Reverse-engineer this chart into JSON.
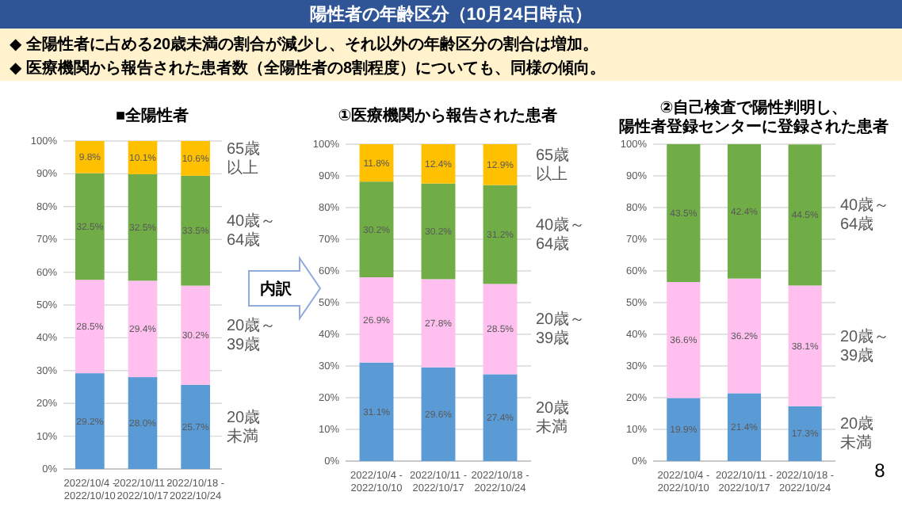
{
  "chart_data": [
    {
      "type": "other",
      "title": "陽性者の年齢区分（10月24日時点）",
      "annotations": [
        "◆  全陽性者に占める20歳未満の割合が減少し、それ以外の年齢区分の割合は増加。",
        "◆  医療機関から報告された患者数（全陽性者の8割程度）についても、同様の傾向。",
        "内訳",
        "8"
      ]
    },
    {
      "type": "bar",
      "stacked": true,
      "title": "■全陽性者",
      "categories": [
        "2022/10/4 -\n2022/10/10",
        "2022/10/11 -\n2022/10/17",
        "2022/10/18 -\n2022/10/24"
      ],
      "series": [
        {
          "name": "20歳未満",
          "color": "#5b9bd5",
          "values": [
            29.2,
            28.0,
            25.7
          ],
          "value_labels": [
            "29.2%",
            "28.0%",
            "25.7%"
          ]
        },
        {
          "name": "20歳～39歳",
          "color": "#ffc0ef",
          "values": [
            28.5,
            29.4,
            30.2
          ],
          "value_labels": [
            "28.5%",
            "29.4%",
            "30.2%"
          ]
        },
        {
          "name": "40歳～64歳",
          "color": "#70ad47",
          "values": [
            32.5,
            32.5,
            33.5
          ],
          "value_labels": [
            "32.5%",
            "32.5%",
            "33.5%"
          ]
        },
        {
          "name": "65歳以上",
          "color": "#ffc000",
          "values": [
            9.8,
            10.1,
            10.6
          ],
          "value_labels": [
            "9.8%",
            "10.1%",
            "10.6%"
          ]
        }
      ],
      "ylim": [
        0,
        100
      ],
      "yticks": [
        {
          "value": 0,
          "label": "0%"
        },
        {
          "value": 10,
          "label": "10%"
        },
        {
          "value": 20,
          "label": "20%"
        },
        {
          "value": 30,
          "label": "30%"
        },
        {
          "value": 40,
          "label": "40%"
        },
        {
          "value": 50,
          "label": "50%"
        },
        {
          "value": 60,
          "label": "60%"
        },
        {
          "value": 70,
          "label": "70%"
        },
        {
          "value": 80,
          "label": "80%"
        },
        {
          "value": 90,
          "label": "90%"
        },
        {
          "value": 100,
          "label": "100%"
        }
      ],
      "grid": "y",
      "legend": false
    },
    {
      "type": "bar",
      "stacked": true,
      "title": "①医療機関から報告された患者",
      "categories": [
        "2022/10/4 -\n2022/10/10",
        "2022/10/11 -\n2022/10/17",
        "2022/10/18 -\n2022/10/24"
      ],
      "series": [
        {
          "name": "20歳未満",
          "color": "#5b9bd5",
          "values": [
            31.1,
            29.6,
            27.4
          ],
          "value_labels": [
            "31.1%",
            "29.6%",
            "27.4%"
          ]
        },
        {
          "name": "20歳～39歳",
          "color": "#ffc0ef",
          "values": [
            26.9,
            27.8,
            28.5
          ],
          "value_labels": [
            "26.9%",
            "27.8%",
            "28.5%"
          ]
        },
        {
          "name": "40歳～64歳",
          "color": "#70ad47",
          "values": [
            30.2,
            30.2,
            31.2
          ],
          "value_labels": [
            "30.2%",
            "30.2%",
            "31.2%"
          ]
        },
        {
          "name": "65歳以上",
          "color": "#ffc000",
          "values": [
            11.8,
            12.4,
            12.9
          ],
          "value_labels": [
            "11.8%",
            "12.4%",
            "12.9%"
          ]
        }
      ],
      "ylim": [
        0,
        100
      ],
      "yticks": [
        {
          "value": 0,
          "label": "0%"
        },
        {
          "value": 10,
          "label": "10%"
        },
        {
          "value": 20,
          "label": "20%"
        },
        {
          "value": 30,
          "label": "30%"
        },
        {
          "value": 40,
          "label": "40%"
        },
        {
          "value": 50,
          "label": "50%"
        },
        {
          "value": 60,
          "label": "60%"
        },
        {
          "value": 70,
          "label": "70%"
        },
        {
          "value": 80,
          "label": "80%"
        },
        {
          "value": 90,
          "label": "90%"
        },
        {
          "value": 100,
          "label": "100%"
        }
      ],
      "grid": "y",
      "legend": false
    },
    {
      "type": "bar",
      "stacked": true,
      "title": "②自己検査で陽性判明し、陽性者登録センターに登録された患者",
      "categories": [
        "2022/10/4 -\n2022/10/10",
        "2022/10/11 -\n2022/10/17",
        "2022/10/18 -\n2022/10/24"
      ],
      "series": [
        {
          "name": "20歳未満",
          "color": "#5b9bd5",
          "values": [
            19.9,
            21.4,
            17.3
          ],
          "value_labels": [
            "19.9%",
            "21.4%",
            "17.3%"
          ]
        },
        {
          "name": "20歳～39歳",
          "color": "#ffc0ef",
          "values": [
            36.6,
            36.2,
            38.1
          ],
          "value_labels": [
            "36.6%",
            "36.2%",
            "38.1%"
          ]
        },
        {
          "name": "40歳～64歳",
          "color": "#70ad47",
          "values": [
            43.5,
            42.4,
            44.5
          ],
          "value_labels": [
            "43.5%",
            "42.4%",
            "44.5%"
          ]
        }
      ],
      "ylim": [
        0,
        100
      ],
      "yticks": [
        {
          "value": 0,
          "label": "0%"
        },
        {
          "value": 10,
          "label": "10%"
        },
        {
          "value": 20,
          "label": "20%"
        },
        {
          "value": 30,
          "label": "30%"
        },
        {
          "value": 40,
          "label": "40%"
        },
        {
          "value": 50,
          "label": "50%"
        },
        {
          "value": 60,
          "label": "60%"
        },
        {
          "value": 70,
          "label": "70%"
        },
        {
          "value": 80,
          "label": "80%"
        },
        {
          "value": 90,
          "label": "90%"
        },
        {
          "value": 100,
          "label": "100%"
        }
      ],
      "grid": "y",
      "legend": false
    }
  ]
}
